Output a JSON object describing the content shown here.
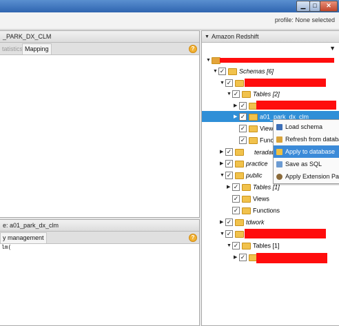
{
  "window": {
    "minimize": "▁",
    "maximize": "□",
    "close": "✕"
  },
  "topbar": {
    "profile_label": "profile:",
    "profile_value": "None selected"
  },
  "left_top": {
    "title": "_PARK_DX_CLM",
    "tabs": [
      "tatistics",
      "Mapping"
    ],
    "help": "?"
  },
  "left_bottom": {
    "title": "e: a01_park_dx_clm",
    "tab": "y management",
    "code": "lm(",
    "help": "?"
  },
  "right_panel": {
    "title": "Amazon Redshift",
    "filter": "filter-icon",
    "tree": {
      "schemas": "Schemas [6]",
      "tables_2": "Tables [2]",
      "selected_table": "a01_park_dx_clm",
      "views": "Views",
      "functions": "Functions",
      "teradata": "teradat",
      "practice": "practice",
      "public": "public",
      "tables_1": "Tables [1]",
      "public_views": "Views",
      "public_functions": "Functions",
      "tdwork": "tdwork",
      "tables_1b": "Tables [1]"
    }
  },
  "context_menu": {
    "items": [
      {
        "label": "Load schema",
        "icon": "load-schema-icon"
      },
      {
        "label": "Refresh from databas",
        "icon": "refresh-icon"
      },
      {
        "label": "Apply to database",
        "icon": "apply-database-icon"
      },
      {
        "label": "Save as SQL",
        "icon": "save-sql-icon"
      },
      {
        "label": "Apply Extension Pack",
        "icon": "extension-pack-icon"
      }
    ]
  },
  "colors": {
    "selection": "#2f8fd7",
    "redaction": "#ff0d0d",
    "menu_highlight": "#3b8ad8"
  }
}
